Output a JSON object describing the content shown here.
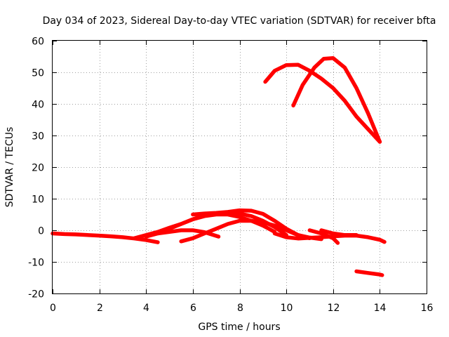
{
  "chart_data": {
    "type": "line",
    "title": "Day 034 of 2023, Sidereal Day-to-day VTEC variation (SDTVAR) for receiver bfta",
    "xlabel": "GPS time / hours",
    "ylabel": "SDTVAR / TECUs",
    "xlim": [
      0,
      16
    ],
    "ylim": [
      -20,
      60
    ],
    "xticks": [
      "0",
      "2",
      "4",
      "6",
      "8",
      "10",
      "12",
      "14",
      "16"
    ],
    "yticks": [
      "-20",
      "-10",
      "0",
      "10",
      "20",
      "30",
      "40",
      "50",
      "60"
    ],
    "xtick_values": [
      0,
      2,
      4,
      6,
      8,
      10,
      12,
      14,
      16
    ],
    "ytick_values": [
      -20,
      -10,
      0,
      10,
      20,
      30,
      40,
      50,
      60
    ],
    "grid": true,
    "legend": "none",
    "line_color": "#ff0000",
    "series": [
      {
        "name": "arc-low-main",
        "x": [
          0,
          0.5,
          1,
          1.5,
          2,
          2.5,
          3,
          3.5,
          4,
          4.5
        ],
        "y": [
          -1,
          -1.2,
          -1.3,
          -1.5,
          -1.7,
          -1.9,
          -2.2,
          -2.6,
          -3.1,
          -3.8
        ]
      },
      {
        "name": "arc-low-1",
        "x": [
          3.5,
          4,
          4.5,
          5,
          5.5,
          6,
          6.5,
          7,
          7.5,
          8,
          8.5,
          9,
          9.5
        ],
        "y": [
          -2.5,
          -1.5,
          -0.5,
          0.8,
          2,
          3.5,
          4.5,
          5,
          5,
          4.2,
          3,
          1.5,
          -0.5
        ]
      },
      {
        "name": "arc-low-2",
        "x": [
          4,
          4.5,
          5,
          5.5,
          6,
          6.5,
          7,
          7.5,
          8,
          8.5,
          9,
          9.5,
          10
        ],
        "y": [
          -2,
          -1,
          0.5,
          2,
          3.5,
          4.8,
          5.2,
          5.4,
          5.3,
          4.5,
          3,
          1,
          -1.5
        ]
      },
      {
        "name": "arc-low-3",
        "x": [
          5.5,
          6,
          6.5,
          7,
          7.5,
          8,
          8.5,
          9,
          9.5,
          10,
          10.5,
          11
        ],
        "y": [
          -3.5,
          -2.5,
          -1,
          0.5,
          2,
          3,
          3,
          2.5,
          1.5,
          0,
          -1.5,
          -2.5
        ]
      },
      {
        "name": "arc-low-4",
        "x": [
          6,
          6.5,
          7,
          7.5,
          8,
          8.5,
          9,
          9.5,
          10,
          10.5,
          11,
          11.5
        ],
        "y": [
          5,
          5.3,
          5.5,
          5.8,
          6.3,
          6.2,
          5.2,
          3,
          0.5,
          -1.5,
          -2.3,
          -2.8
        ]
      },
      {
        "name": "arc-low-5",
        "x": [
          4.5,
          5,
          5.5,
          6,
          6.5,
          7.1
        ],
        "y": [
          -1,
          -0.5,
          0,
          0,
          -0.6,
          -2
        ]
      },
      {
        "name": "arc-low-6",
        "x": [
          9.5,
          10,
          10.5,
          11,
          11.5,
          12,
          12.5,
          13,
          13.5,
          14,
          14.2
        ],
        "y": [
          -1,
          -2.2,
          -2.6,
          -2.4,
          -2.2,
          -1.9,
          -1.7,
          -1.7,
          -2.2,
          -3,
          -3.7
        ]
      },
      {
        "name": "arc-low-7",
        "x": [
          11,
          11.5,
          12,
          12.2
        ],
        "y": [
          0,
          -1,
          -2.5,
          -4
        ]
      },
      {
        "name": "arc-low-8",
        "x": [
          11.5,
          12,
          12.5,
          13
        ],
        "y": [
          0,
          -1,
          -1.5,
          -1.5
        ]
      },
      {
        "name": "arc-low-9",
        "x": [
          13,
          13.5,
          14,
          14.1
        ],
        "y": [
          -13,
          -13.5,
          -14,
          -14.2
        ]
      },
      {
        "name": "arc-high-1",
        "x": [
          9.1,
          9.5,
          10,
          10.5,
          11,
          11.5,
          12,
          12.5,
          13,
          13.5,
          14
        ],
        "y": [
          47,
          50.5,
          52.3,
          52.4,
          50.5,
          48,
          45,
          41,
          36,
          32,
          28
        ]
      },
      {
        "name": "arc-high-2",
        "x": [
          10.3,
          10.7,
          11.2,
          11.6,
          12,
          12.5,
          13,
          13.5,
          14
        ],
        "y": [
          39.5,
          46,
          51.5,
          54.3,
          54.5,
          51.5,
          45,
          37,
          28
        ]
      }
    ]
  }
}
